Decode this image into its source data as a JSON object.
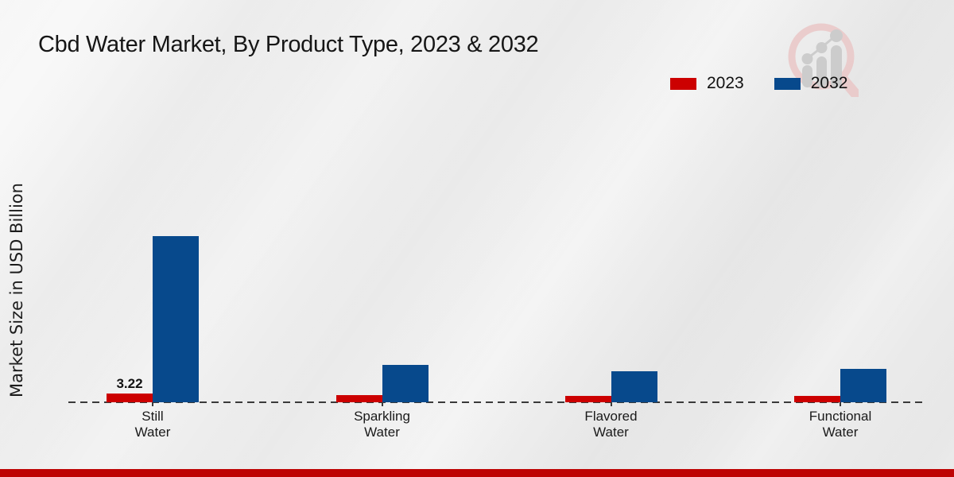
{
  "chart_data": {
    "type": "bar",
    "title": "Cbd Water Market, By Product Type, 2023 & 2032",
    "ylabel": "Market Size in USD Billion",
    "xlabel": "",
    "categories": [
      "Still\nWater",
      "Sparkling\nWater",
      "Flavored\nWater",
      "Functional\nWater"
    ],
    "series": [
      {
        "name": "2023",
        "color": "#CC0000",
        "values": [
          3.22,
          2.6,
          2.3,
          2.2
        ],
        "labels": [
          "3.22",
          "",
          "",
          ""
        ]
      },
      {
        "name": "2032",
        "color": "#07498C",
        "values": [
          58.5,
          13.2,
          10.9,
          11.7
        ],
        "labels": [
          "",
          "",
          "",
          ""
        ]
      }
    ],
    "ylim": [
      0,
      65
    ],
    "grid": false,
    "baseline_style": "dashed",
    "legend_position": "top-right"
  },
  "branding": {
    "watermark_icon": "magnifier-bar-chart-logo",
    "watermark_ring_color": "#eac9c9",
    "watermark_bar_color": "#c9c9c9",
    "footer_band_color": "#BE0404"
  }
}
